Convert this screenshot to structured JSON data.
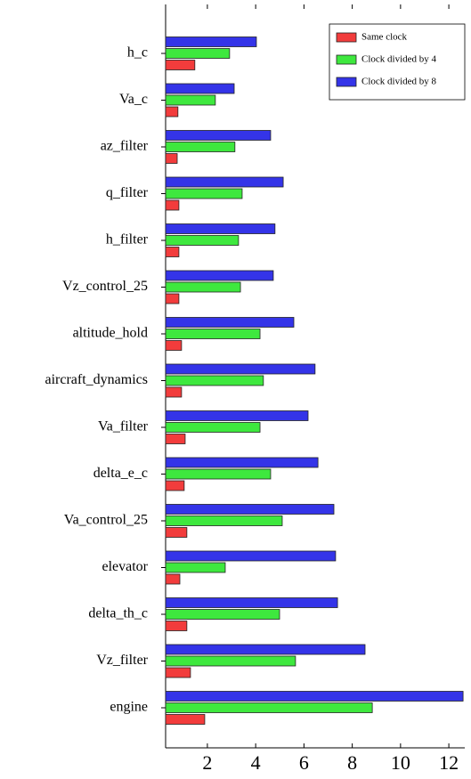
{
  "chart_data": {
    "type": "barh",
    "categories": [
      "h_c",
      "Va_c",
      "az_filter",
      "q_filter",
      "h_filter",
      "Vz_control_25",
      "altitude_hold",
      "aircraft_dynamics",
      "Va_filter",
      "delta_e_c",
      "Va_control_25",
      "elevator",
      "delta_th_c",
      "Vz_filter",
      "engine"
    ],
    "series": [
      {
        "name": "Same clock",
        "color": "#f23c3c",
        "values": [
          1.48,
          0.78,
          0.75,
          0.82,
          0.82,
          0.82,
          0.93,
          0.93,
          1.08,
          1.04,
          1.15,
          0.86,
          1.15,
          1.3,
          1.89
        ]
      },
      {
        "name": "Clock divided by 4",
        "color": "#3ee83e",
        "values": [
          2.92,
          2.33,
          3.14,
          3.44,
          3.29,
          3.37,
          4.18,
          4.32,
          4.18,
          4.62,
          5.1,
          2.74,
          4.99,
          5.65,
          8.83
        ]
      },
      {
        "name": "Clock divided by 8",
        "color": "#3434e8",
        "values": [
          4.03,
          3.11,
          4.62,
          5.14,
          4.8,
          4.73,
          5.58,
          6.46,
          6.17,
          6.58,
          7.24,
          7.31,
          7.39,
          8.53,
          12.59
        ]
      }
    ],
    "xlim": [
      0.27,
      12.66
    ],
    "xticks": [
      2,
      4,
      6,
      8,
      10,
      12
    ],
    "legend": "north east"
  }
}
